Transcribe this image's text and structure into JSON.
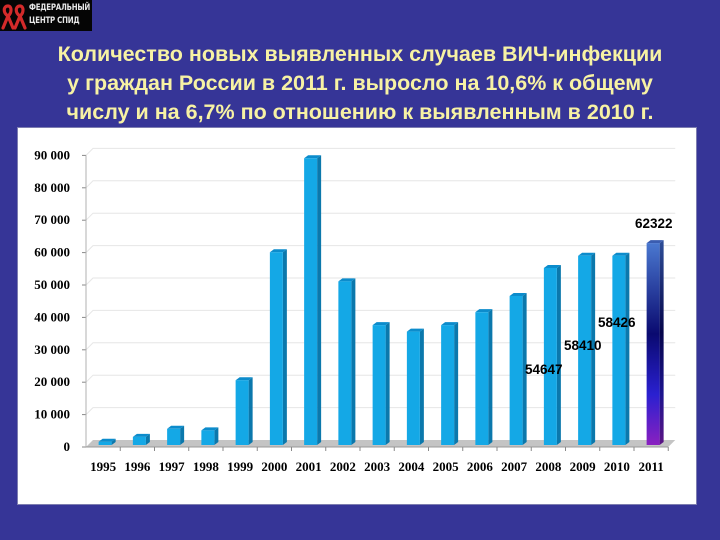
{
  "logo": {
    "line1": "ФЕДЕРАЛЬНЫЙ",
    "line2": "ЦЕНТР СПИД",
    "icon": "red-ribbon-icon"
  },
  "title": {
    "line1": "Количество новых выявленных случаев ВИЧ-инфекции",
    "line2": "у граждан России в 2011 г. выросло на 10,6% к общему",
    "line3": "числу и на 6,7% по отношению к выявленным в  2010 г."
  },
  "colors": {
    "background": "#363597",
    "title": "#f7f2a4",
    "bar_front": "#14a8e6",
    "bar_side": "#0b78ac",
    "bar_top": "#0c8ccc",
    "highlight_top": "#4a78d0",
    "highlight_mid": "#0a0a70",
    "highlight_bottom": "#8a20c0",
    "floor": "#c4c4c4"
  },
  "chart_data": {
    "type": "bar",
    "title": "Количество новых выявленных случаев ВИЧ-инфекции у граждан России в 2011 г. выросло на 10,6% к общему числу и на 6,7% по отношению к выявленным в 2010 г.",
    "xlabel": "",
    "ylabel": "",
    "categories": [
      "1995",
      "1996",
      "1997",
      "1998",
      "1999",
      "2000",
      "2001",
      "2002",
      "2003",
      "2004",
      "2005",
      "2006",
      "2007",
      "2008",
      "2009",
      "2010",
      "2011"
    ],
    "values": [
      1000,
      2500,
      5000,
      4500,
      20000,
      59500,
      88500,
      50500,
      37000,
      35000,
      37000,
      41000,
      46000,
      54647,
      58410,
      58426,
      62322
    ],
    "data_labels": [
      {
        "category": "2008",
        "text": "54647"
      },
      {
        "category": "2009",
        "text": "58410"
      },
      {
        "category": "2010",
        "text": "58426"
      },
      {
        "category": "2011",
        "text": "62322"
      }
    ],
    "yticks": [
      "0",
      "10 000",
      "20 000",
      "30 000",
      "40 000",
      "50 000",
      "60 000",
      "70 000",
      "80 000",
      "90 000"
    ],
    "ylim": [
      0,
      90000
    ],
    "grid": true,
    "style": "3d-column",
    "highlighted_category": "2011",
    "legend": null
  }
}
